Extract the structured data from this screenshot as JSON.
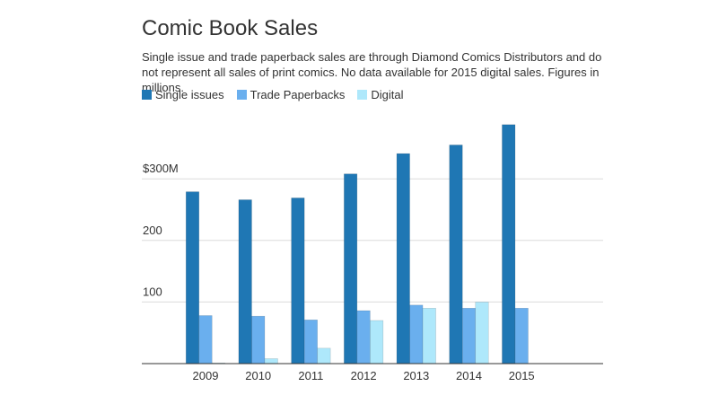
{
  "chart_data": {
    "type": "bar",
    "title": "Comic Book Sales",
    "subtitle": "Single issue and trade paperback sales are through Diamond Comics Distributors and do not represent all sales of print comics. No data available for 2015 digital sales. Figures in millions.",
    "categories": [
      "2009",
      "2010",
      "2011",
      "2012",
      "2013",
      "2014",
      "2015"
    ],
    "series": [
      {
        "name": "Single issues",
        "color": "#1f77b4",
        "values": [
          279,
          266,
          269,
          308,
          341,
          355,
          388
        ]
      },
      {
        "name": "Trade Paperbacks",
        "color": "#6aafee",
        "values": [
          78,
          77,
          71,
          86,
          95,
          90,
          90
        ]
      },
      {
        "name": "Digital",
        "color": "#aee8fb",
        "values": [
          1,
          8,
          25,
          70,
          90,
          100,
          null
        ]
      }
    ],
    "ylim": [
      0,
      400
    ],
    "yticks": [
      {
        "value": 100,
        "label": "100"
      },
      {
        "value": 200,
        "label": "200"
      },
      {
        "value": 300,
        "label": "$300M"
      }
    ],
    "grid": true,
    "legend_position": "top-left"
  }
}
